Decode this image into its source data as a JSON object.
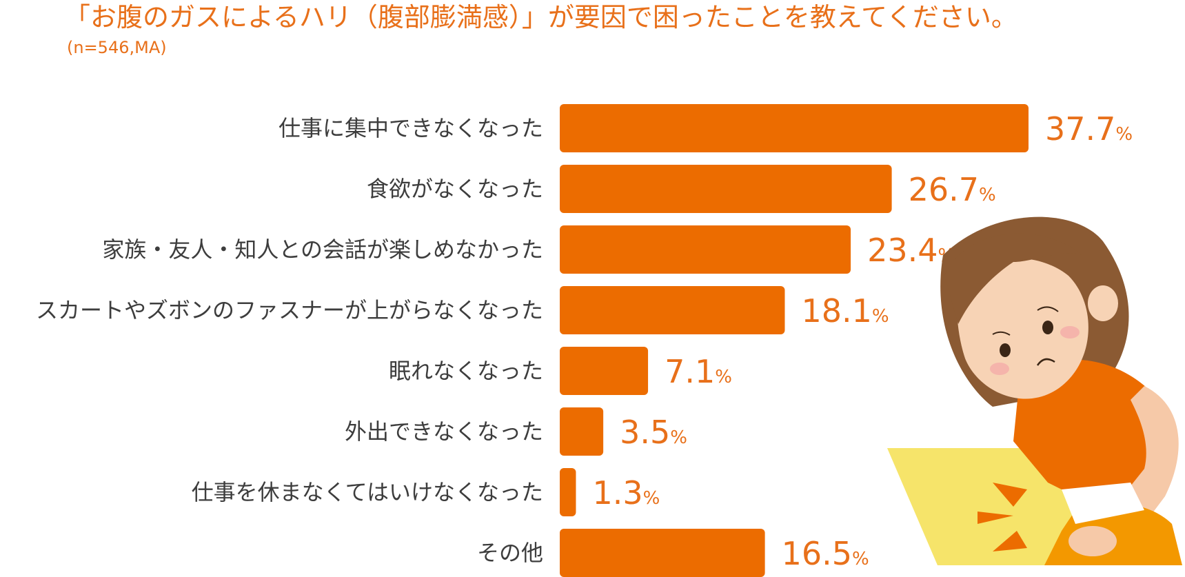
{
  "chart_data": {
    "type": "bar",
    "orientation": "horizontal",
    "title": "「お腹のガスによるハリ（腹部膨満感）」が要因で困ったことを教えてください。",
    "subtitle": "(n=546,MA)",
    "categories": [
      "仕事に集中できなくなった",
      "食欲がなくなった",
      "家族・友人・知人との会話が楽しめなかった",
      "スカートやズボンのファスナーが上がらなくなった",
      "眠れなくなった",
      "外出できなくなった",
      "仕事を休まなくてはいけなくなった",
      "その他"
    ],
    "values": [
      37.7,
      26.7,
      23.4,
      18.1,
      7.1,
      3.5,
      1.3,
      16.5
    ],
    "unit": "%",
    "bar_color": "#ec6c00",
    "label_color": "#e8701a",
    "grid": false,
    "legend": "none"
  }
}
